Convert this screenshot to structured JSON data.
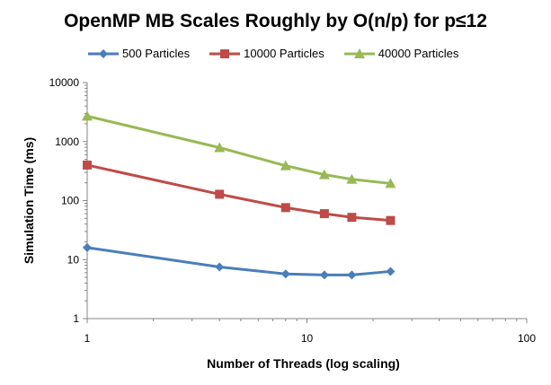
{
  "chart_data": {
    "type": "line",
    "title": "OpenMP MB Scales Roughly by O(n/p) for p≤12",
    "xlabel": "Number of Threads (log scaling)",
    "ylabel": "Simulation Time (ms)",
    "xscale": "log",
    "yscale": "log",
    "xlim": [
      1,
      100
    ],
    "ylim": [
      1,
      10000
    ],
    "x_ticks": [
      "1",
      "10",
      "100"
    ],
    "y_ticks": [
      "1",
      "10",
      "100",
      "1000",
      "10000"
    ],
    "grid": false,
    "legend_position": "top",
    "x": [
      1,
      4,
      8,
      12,
      16,
      24
    ],
    "series": [
      {
        "name": "500 Particles",
        "marker": "diamond",
        "color": "#4a7ebb",
        "values": [
          16,
          7.5,
          5.7,
          5.5,
          5.5,
          6.3
        ]
      },
      {
        "name": "10000 Particles",
        "marker": "square",
        "color": "#be4b48",
        "values": [
          400,
          128,
          76,
          60,
          52,
          46
        ]
      },
      {
        "name": "40000 Particles",
        "marker": "triangle",
        "color": "#98b954",
        "values": [
          2700,
          790,
          390,
          275,
          230,
          195
        ]
      }
    ]
  }
}
